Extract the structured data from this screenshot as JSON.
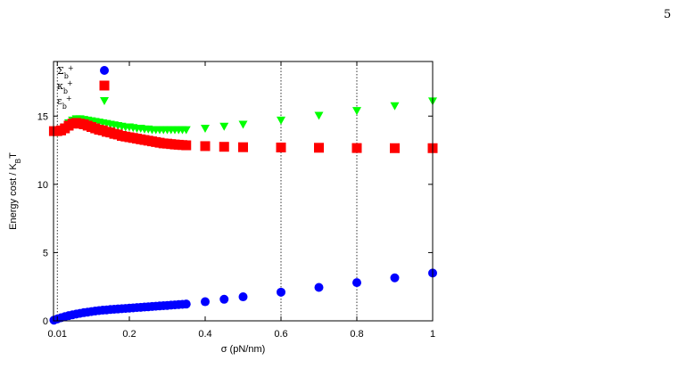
{
  "page_number": "5",
  "chart_data": {
    "type": "scatter",
    "title": "",
    "xlabel": "σ (pN/nm)",
    "ylabel": "Energy cost / K_B T",
    "xlim": [
      0,
      1
    ],
    "ylim": [
      0,
      19
    ],
    "x_ticks": [
      {
        "value": 0.01,
        "label": "0.01"
      },
      {
        "value": 0.2,
        "label": "0.2"
      },
      {
        "value": 0.4,
        "label": "0.4"
      },
      {
        "value": 0.6,
        "label": "0.6"
      },
      {
        "value": 0.8,
        "label": "0.8"
      },
      {
        "value": 1,
        "label": "1"
      }
    ],
    "y_ticks": [
      {
        "value": 0,
        "label": "0"
      },
      {
        "value": 5,
        "label": "5"
      },
      {
        "value": 10,
        "label": "10"
      },
      {
        "value": 15,
        "label": "15"
      }
    ],
    "reference_lines_x": [
      0.01,
      0.6,
      0.8
    ],
    "grid": false,
    "legend_position": "top-left",
    "series": [
      {
        "name": "Σb+",
        "marker": "circle",
        "color": "#0000ff",
        "x": [
          0.001,
          0.01,
          0.02,
          0.03,
          0.04,
          0.05,
          0.06,
          0.07,
          0.08,
          0.09,
          0.1,
          0.11,
          0.12,
          0.13,
          0.14,
          0.15,
          0.16,
          0.17,
          0.18,
          0.19,
          0.2,
          0.21,
          0.22,
          0.23,
          0.24,
          0.25,
          0.26,
          0.27,
          0.28,
          0.29,
          0.3,
          0.31,
          0.32,
          0.33,
          0.34,
          0.35,
          0.4,
          0.45,
          0.5,
          0.6,
          0.7,
          0.8,
          0.9,
          1.0
        ],
        "y": [
          0.05,
          0.14,
          0.23,
          0.31,
          0.38,
          0.44,
          0.5,
          0.55,
          0.6,
          0.64,
          0.68,
          0.72,
          0.75,
          0.78,
          0.8,
          0.83,
          0.85,
          0.87,
          0.89,
          0.91,
          0.93,
          0.95,
          0.97,
          0.99,
          1.01,
          1.03,
          1.05,
          1.07,
          1.09,
          1.11,
          1.13,
          1.15,
          1.17,
          1.19,
          1.21,
          1.23,
          1.4,
          1.58,
          1.76,
          2.1,
          2.45,
          2.8,
          3.15,
          3.5
        ]
      },
      {
        "name": "κb+",
        "marker": "square",
        "color": "#ff0000",
        "x": [
          0.001,
          0.01,
          0.02,
          0.03,
          0.04,
          0.05,
          0.06,
          0.07,
          0.08,
          0.09,
          0.1,
          0.11,
          0.12,
          0.13,
          0.14,
          0.15,
          0.16,
          0.17,
          0.18,
          0.19,
          0.2,
          0.21,
          0.22,
          0.23,
          0.24,
          0.25,
          0.26,
          0.27,
          0.28,
          0.29,
          0.3,
          0.31,
          0.32,
          0.33,
          0.34,
          0.35,
          0.4,
          0.45,
          0.5,
          0.6,
          0.7,
          0.8,
          0.9,
          1.0
        ],
        "y": [
          13.9,
          13.9,
          13.95,
          14.1,
          14.3,
          14.45,
          14.5,
          14.45,
          14.4,
          14.3,
          14.2,
          14.1,
          14.0,
          13.95,
          13.85,
          13.8,
          13.7,
          13.65,
          13.55,
          13.5,
          13.45,
          13.4,
          13.35,
          13.3,
          13.25,
          13.2,
          13.15,
          13.1,
          13.05,
          13.0,
          12.98,
          12.95,
          12.92,
          12.9,
          12.88,
          12.86,
          12.8,
          12.75,
          12.72,
          12.7,
          12.68,
          12.66,
          12.65,
          12.65
        ]
      },
      {
        "name": "εb+",
        "marker": "triangle-down",
        "color": "#00ff00",
        "x": [
          0.001,
          0.01,
          0.02,
          0.03,
          0.04,
          0.05,
          0.06,
          0.07,
          0.08,
          0.09,
          0.1,
          0.11,
          0.12,
          0.13,
          0.14,
          0.15,
          0.16,
          0.17,
          0.18,
          0.19,
          0.2,
          0.21,
          0.22,
          0.23,
          0.24,
          0.25,
          0.26,
          0.27,
          0.28,
          0.29,
          0.3,
          0.31,
          0.32,
          0.33,
          0.34,
          0.35,
          0.4,
          0.45,
          0.5,
          0.6,
          0.7,
          0.8,
          0.9,
          1.0
        ],
        "y": [
          13.8,
          13.8,
          13.9,
          14.2,
          14.5,
          14.7,
          14.8,
          14.8,
          14.75,
          14.7,
          14.65,
          14.6,
          14.55,
          14.5,
          14.45,
          14.4,
          14.35,
          14.3,
          14.25,
          14.2,
          14.2,
          14.15,
          14.1,
          14.1,
          14.05,
          14.05,
          14.0,
          14.0,
          14.0,
          14.0,
          14.0,
          14.0,
          14.0,
          14.0,
          14.0,
          14.0,
          14.1,
          14.25,
          14.4,
          14.7,
          15.05,
          15.4,
          15.75,
          16.1
        ]
      }
    ]
  }
}
